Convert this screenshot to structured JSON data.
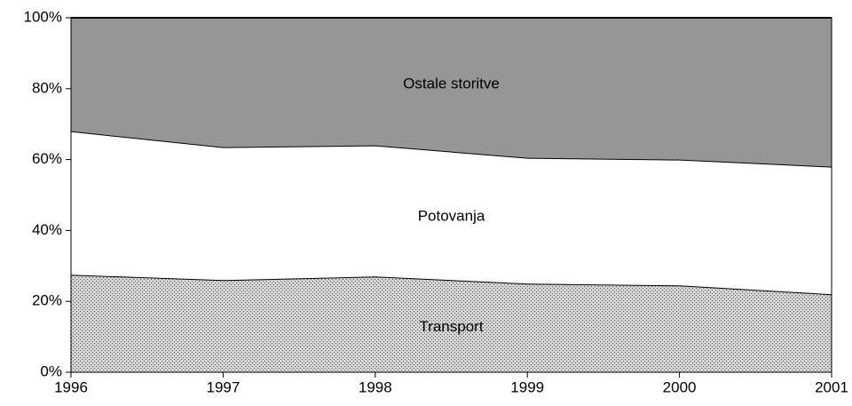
{
  "chart_data": {
    "type": "stacked_area_percent",
    "x": [
      1996,
      1997,
      1998,
      1999,
      2000,
      2001
    ],
    "xlim": [
      1996,
      2001
    ],
    "xticks": [
      1996,
      1997,
      1998,
      1999,
      2000,
      2001
    ],
    "ylim": [
      0,
      100
    ],
    "yticks": [
      {
        "value": 0,
        "label": "0%"
      },
      {
        "value": 20,
        "label": "20%"
      },
      {
        "value": 40,
        "label": "40%"
      },
      {
        "value": 60,
        "label": "60%"
      },
      {
        "value": 80,
        "label": "80%"
      },
      {
        "value": 100,
        "label": "100%"
      }
    ],
    "series": [
      {
        "name": "Transport",
        "color": "#d4d4d4",
        "pattern": "dots",
        "values": [
          27.5,
          26,
          27,
          25,
          24.5,
          22
        ]
      },
      {
        "name": "Potovanja",
        "color": "#ffffff",
        "values": [
          40.5,
          37.5,
          37,
          35.5,
          35.5,
          36
        ]
      },
      {
        "name": "Ostale storitve",
        "color": "#969696",
        "values": [
          32,
          36.5,
          36,
          39.5,
          40,
          42
        ]
      }
    ]
  }
}
